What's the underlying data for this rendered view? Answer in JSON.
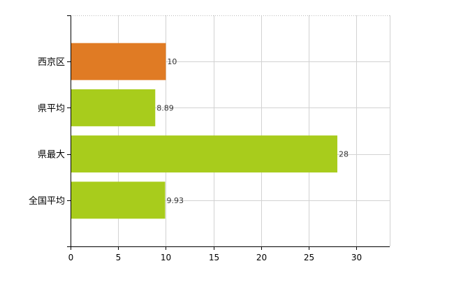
{
  "chart_data": {
    "type": "bar",
    "orientation": "horizontal",
    "categories": [
      "西京区",
      "県平均",
      "県最大",
      "全国平均"
    ],
    "values": [
      10,
      8.89,
      28,
      9.93
    ],
    "value_labels": [
      "10",
      "8.89",
      "28",
      "9.93"
    ],
    "bar_colors": [
      "#E07B24",
      "#A8CC1C",
      "#A8CC1C",
      "#A8CC1C"
    ],
    "xlim": [
      0,
      33.5
    ],
    "x_ticks": [
      0,
      5,
      10,
      15,
      20,
      25,
      30
    ],
    "x_tick_labels": [
      "0",
      "5",
      "10",
      "15",
      "20",
      "25",
      "30"
    ],
    "grid": true,
    "legend": "none"
  }
}
